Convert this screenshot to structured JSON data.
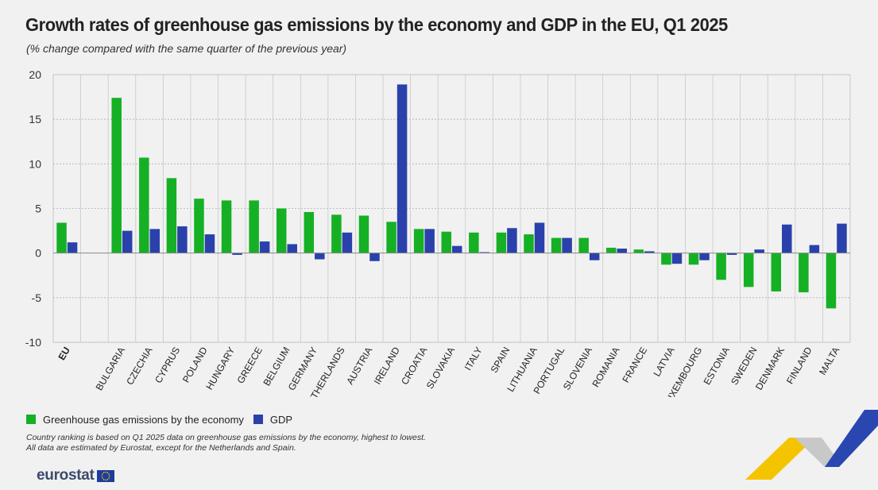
{
  "title": "Growth rates of greenhouse gas emissions by the economy and GDP in the EU, Q1 2025",
  "subtitle": "(% change compared with the same quarter of the previous year)",
  "legend": {
    "ghg": "Greenhouse gas emissions by the economy",
    "gdp": "GDP"
  },
  "footnotes": {
    "line1": "Country ranking is based on Q1 2025 data on greenhouse gas emissions by the economy, highest to lowest.",
    "line2": "All data are estimated by Eurostat, except for the Netherlands and Spain."
  },
  "logo": {
    "text": "eurostat"
  },
  "colors": {
    "ghg": "#16b025",
    "gdp": "#2a41ab",
    "grid": "#b0b0b0",
    "axis": "#888888"
  },
  "chart_data": {
    "type": "bar",
    "categories": [
      "EU",
      "",
      "BULGARIA",
      "CZECHIA",
      "CYPRUS",
      "POLAND",
      "HUNGARY",
      "GREECE",
      "BELGIUM",
      "GERMANY",
      "NETHERLANDS",
      "AUSTRIA",
      "IRELAND",
      "CROATIA",
      "SLOVAKIA",
      "ITALY",
      "SPAIN",
      "LITHUANIA",
      "PORTUGAL",
      "SLOVENIA",
      "ROMANIA",
      "FRANCE",
      "LATVIA",
      "LUXEMBOURG",
      "ESTONIA",
      "SWEDEN",
      "DENMARK",
      "FINLAND",
      "MALTA"
    ],
    "series": [
      {
        "name": "Greenhouse gas emissions by the economy",
        "values": [
          3.4,
          null,
          17.4,
          10.7,
          8.4,
          6.1,
          5.9,
          5.9,
          5.0,
          4.6,
          4.3,
          4.2,
          3.5,
          2.7,
          2.4,
          2.3,
          2.3,
          2.1,
          1.7,
          1.7,
          0.6,
          0.4,
          -1.3,
          -1.3,
          -3.0,
          -3.8,
          -4.3,
          -4.4,
          -6.2
        ]
      },
      {
        "name": "GDP",
        "values": [
          1.2,
          null,
          2.5,
          2.7,
          3.0,
          2.1,
          -0.2,
          1.3,
          1.0,
          -0.7,
          2.3,
          -0.9,
          18.9,
          2.7,
          0.8,
          0.1,
          2.8,
          3.4,
          1.7,
          -0.8,
          0.5,
          0.2,
          -1.2,
          -0.8,
          -0.2,
          0.4,
          3.2,
          0.9,
          3.3
        ]
      }
    ],
    "ylim": [
      -10,
      20
    ],
    "yticks": [
      -10,
      -5,
      0,
      5,
      10,
      15,
      20
    ],
    "grid": true,
    "legend_position": "bottom-left"
  }
}
